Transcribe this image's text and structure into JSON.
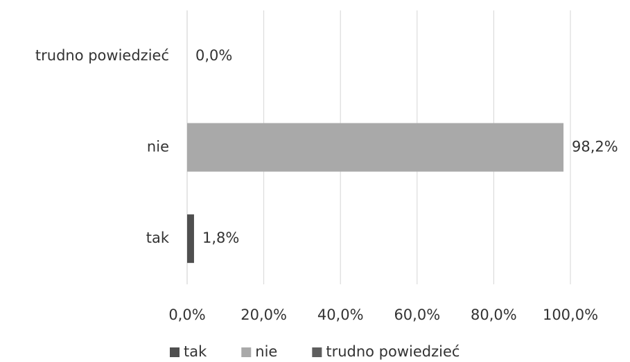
{
  "chart_data": {
    "type": "bar",
    "orientation": "horizontal",
    "categories": [
      "tak",
      "nie",
      "trudno powiedzieć"
    ],
    "values": [
      1.8,
      98.2,
      0.0
    ],
    "value_labels": [
      "1,8%",
      "98,2%",
      "0,0%"
    ],
    "colors": [
      "#4f4f4f",
      "#a9a9a9",
      "#5e5e5e"
    ],
    "xlim": [
      0,
      100
    ],
    "xticks": [
      {
        "value": 0,
        "label": "0,0%"
      },
      {
        "value": 20,
        "label": "20,0%"
      },
      {
        "value": 40,
        "label": "40,0%"
      },
      {
        "value": 60,
        "label": "60,0%"
      },
      {
        "value": 80,
        "label": "80,0%"
      },
      {
        "value": 100,
        "label": "100,0%"
      }
    ],
    "grid": true,
    "legend": "bottom"
  }
}
